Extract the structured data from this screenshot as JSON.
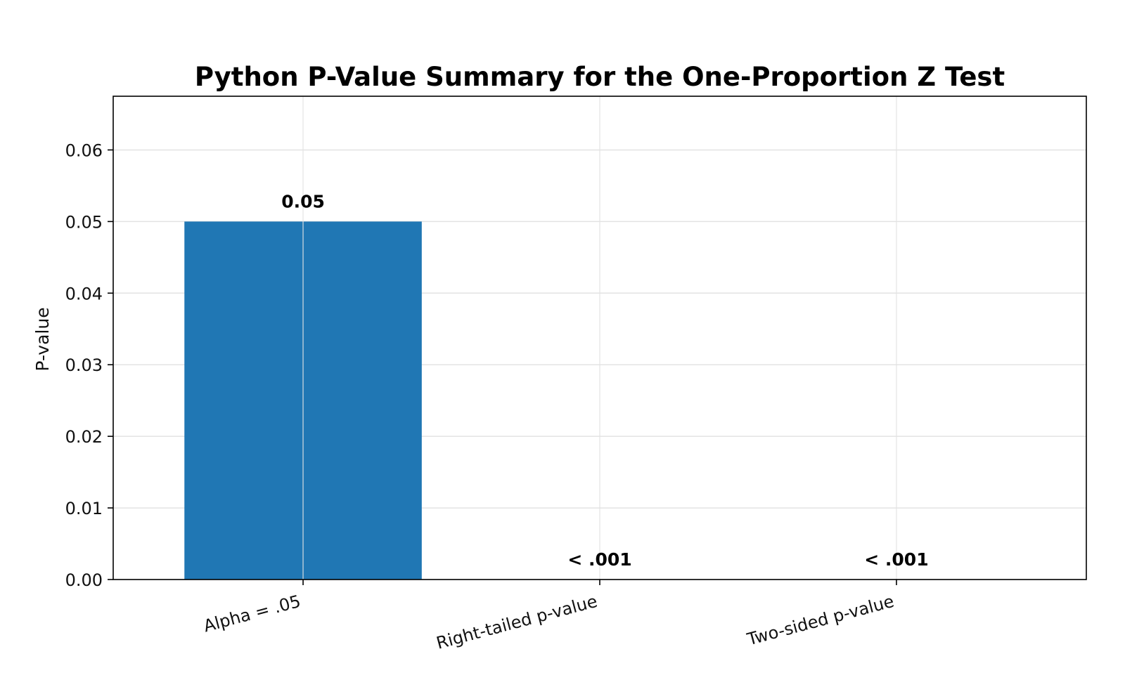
{
  "chart_data": {
    "type": "bar",
    "title": "Python P-Value Summary for the One-Proportion Z Test",
    "xlabel": "",
    "ylabel": "P-value",
    "categories": [
      "Alpha = .05",
      "Right-tailed p-value",
      "Two-sided p-value"
    ],
    "values": [
      0.05,
      0.0,
      0.0
    ],
    "data_labels": [
      "0.05",
      "< .001",
      "< .001"
    ],
    "ylim": [
      0,
      0.0675
    ],
    "yticks": [
      0.0,
      0.01,
      0.02,
      0.03,
      0.04,
      0.05,
      0.06
    ],
    "ytick_labels": [
      "0.00",
      "0.01",
      "0.02",
      "0.03",
      "0.04",
      "0.05",
      "0.06"
    ],
    "grid": true,
    "colors": {
      "bar": "#2077b4",
      "grid": "#e3e3e3",
      "axis": "#000000"
    }
  }
}
